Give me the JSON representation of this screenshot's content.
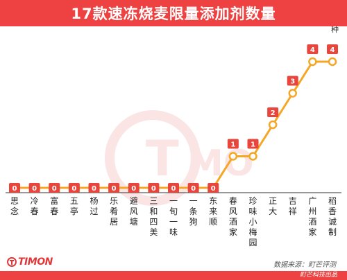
{
  "header": {
    "title": "17款速冻烧麦限量添加剂数量"
  },
  "chart_data": {
    "type": "line",
    "title": "17款速冻烧麦限量添加剂数量",
    "unit_label": "种",
    "categories": [
      "思念",
      "冷春",
      "富春",
      "五亭",
      "杨过",
      "乐肴居",
      "避风塘",
      "三和四美",
      "一旬一味",
      "一条狗",
      "东来顺",
      "春风酒家",
      "珍味小梅园",
      "正大",
      "吉祥",
      "广州酒家",
      "稻香诚制"
    ],
    "values": [
      0,
      0,
      0,
      0,
      0,
      0,
      0,
      0,
      0,
      0,
      0,
      1,
      1,
      2,
      3,
      4,
      4
    ],
    "ylim": [
      0,
      4
    ],
    "grid": false,
    "colors": {
      "line": "#f5a623",
      "badge": "#e8453c",
      "marker_fill": "#ffffff",
      "axis": "#333333"
    }
  },
  "brand": {
    "logo_text": "TIMON"
  },
  "footer": {
    "source": "数据来源：町芒评测",
    "producer": "町芒科技出品"
  },
  "colors": {
    "accent": "#ee4242"
  }
}
